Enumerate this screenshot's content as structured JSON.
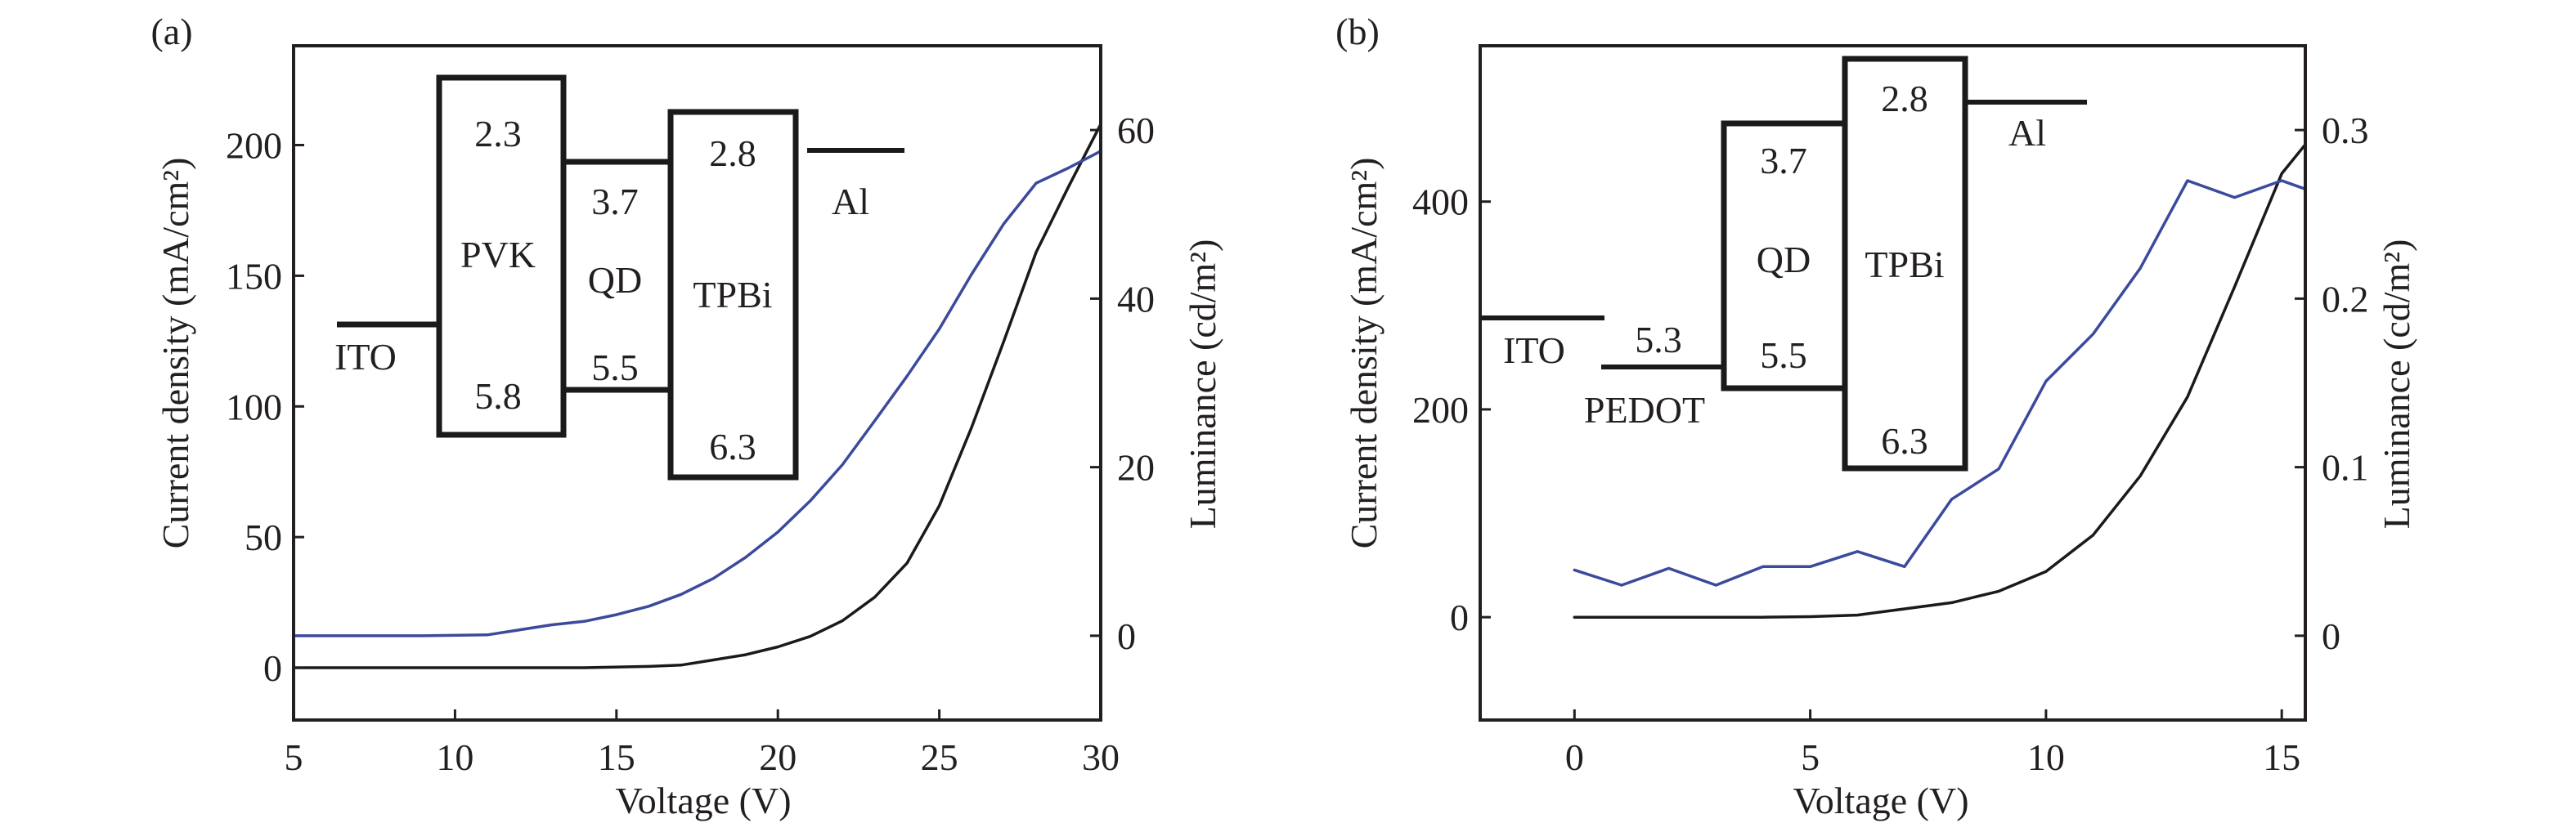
{
  "chart_data": [
    {
      "panel_label": "(a)",
      "type": "line",
      "xlabel": "Voltage (V)",
      "ylabel": "Current density (mA/cm²)",
      "ylabel_right": "Luminance (cd/m²)",
      "xlim": [
        5,
        30
      ],
      "ylim": [
        -20,
        238
      ],
      "ylim_right": [
        -10,
        70
      ],
      "xticks": [
        "5",
        "10",
        "15",
        "20",
        "25",
        "30"
      ],
      "xtick_values": [
        5,
        10,
        15,
        20,
        25,
        30
      ],
      "yticks": [
        "0",
        "50",
        "100",
        "150",
        "200"
      ],
      "ytick_values": [
        0,
        50,
        100,
        150,
        200
      ],
      "yticks_right": [
        "0",
        "20",
        "40",
        "60"
      ],
      "ytick_values_right": [
        0,
        20,
        40,
        60
      ],
      "grid": false,
      "series": [
        {
          "name": "Current density",
          "axis": "left",
          "color": "#1a1a1a",
          "x": [
            5,
            8,
            11,
            14,
            16,
            17,
            18,
            19,
            20,
            21,
            22,
            23,
            24,
            25,
            26,
            27,
            28,
            29,
            30
          ],
          "y": [
            0,
            0,
            0,
            0,
            0.5,
            1,
            3,
            5,
            8,
            12,
            18,
            27,
            40,
            62,
            92,
            125,
            159,
            184,
            208
          ]
        },
        {
          "name": "Luminance",
          "axis": "right",
          "color": "#3b4a9c",
          "x": [
            5,
            7,
            9,
            11,
            13,
            14,
            15,
            16,
            17,
            18,
            19,
            20,
            21,
            22,
            23,
            24,
            25,
            26,
            27,
            28,
            29,
            30
          ],
          "y": [
            0,
            0,
            0,
            0.1,
            1.3,
            1.7,
            2.5,
            3.5,
            4.9,
            6.8,
            9.3,
            12.3,
            16.0,
            20.3,
            25.5,
            30.8,
            36.4,
            42.9,
            48.9,
            53.7,
            55.5,
            57.5
          ]
        }
      ],
      "energy_diagram": {
        "layers": [
          {
            "name": "ITO",
            "type": "line"
          },
          {
            "name": "PVK",
            "type": "box",
            "top_label": "2.3",
            "bottom_label": "5.8"
          },
          {
            "name": "QD",
            "type": "gap",
            "top_label": "3.7",
            "bottom_label": "5.5"
          },
          {
            "name": "TPBi",
            "type": "box",
            "top_label": "2.8",
            "bottom_label": "6.3"
          },
          {
            "name": "Al",
            "type": "line"
          }
        ]
      }
    },
    {
      "panel_label": "(b)",
      "type": "line",
      "xlabel": "Voltage (V)",
      "ylabel": "Current density (mA/cm²)",
      "ylabel_right": "Luminance (cd/m²)",
      "xlim": [
        -2,
        15.5
      ],
      "ylim": [
        -99,
        550
      ],
      "ylim_right": [
        -0.05,
        0.35
      ],
      "xticks": [
        "0",
        "5",
        "10",
        "15"
      ],
      "xtick_values": [
        0,
        5,
        10,
        15
      ],
      "yticks": [
        "0",
        "200",
        "400"
      ],
      "ytick_values": [
        0,
        200,
        400
      ],
      "yticks_right": [
        "0",
        "0.1",
        "0.2",
        "0.3"
      ],
      "ytick_values_right": [
        0,
        0.1,
        0.2,
        0.3
      ],
      "grid": false,
      "series": [
        {
          "name": "Current density",
          "axis": "left",
          "color": "#1a1a1a",
          "x": [
            0,
            1,
            2,
            3,
            4,
            5,
            6,
            7,
            8,
            9,
            10,
            11,
            12,
            13,
            14,
            15,
            15.5
          ],
          "y": [
            0,
            0,
            0,
            0,
            0,
            0.5,
            2,
            8,
            14,
            25,
            44,
            79,
            136,
            212,
            318,
            427,
            455
          ]
        },
        {
          "name": "Luminance",
          "axis": "right",
          "color": "#3b4a9c",
          "x": [
            0,
            1,
            2,
            3,
            4,
            5,
            6,
            7,
            8,
            9,
            10,
            11,
            12,
            13,
            14,
            15,
            15.5
          ],
          "y": [
            0.039,
            0.03,
            0.04,
            0.03,
            0.041,
            0.041,
            0.05,
            0.041,
            0.081,
            0.099,
            0.151,
            0.179,
            0.218,
            0.27,
            0.26,
            0.27,
            0.265
          ]
        }
      ],
      "energy_diagram": {
        "layers": [
          {
            "name": "ITO",
            "type": "line"
          },
          {
            "name": "PEDOT",
            "type": "line",
            "label": "5.3"
          },
          {
            "name": "QD",
            "type": "box",
            "top_label": "3.7",
            "bottom_label": "5.5"
          },
          {
            "name": "TPBi",
            "type": "box",
            "top_label": "2.8",
            "bottom_label": "6.3"
          },
          {
            "name": "Al",
            "type": "line"
          }
        ]
      }
    }
  ]
}
